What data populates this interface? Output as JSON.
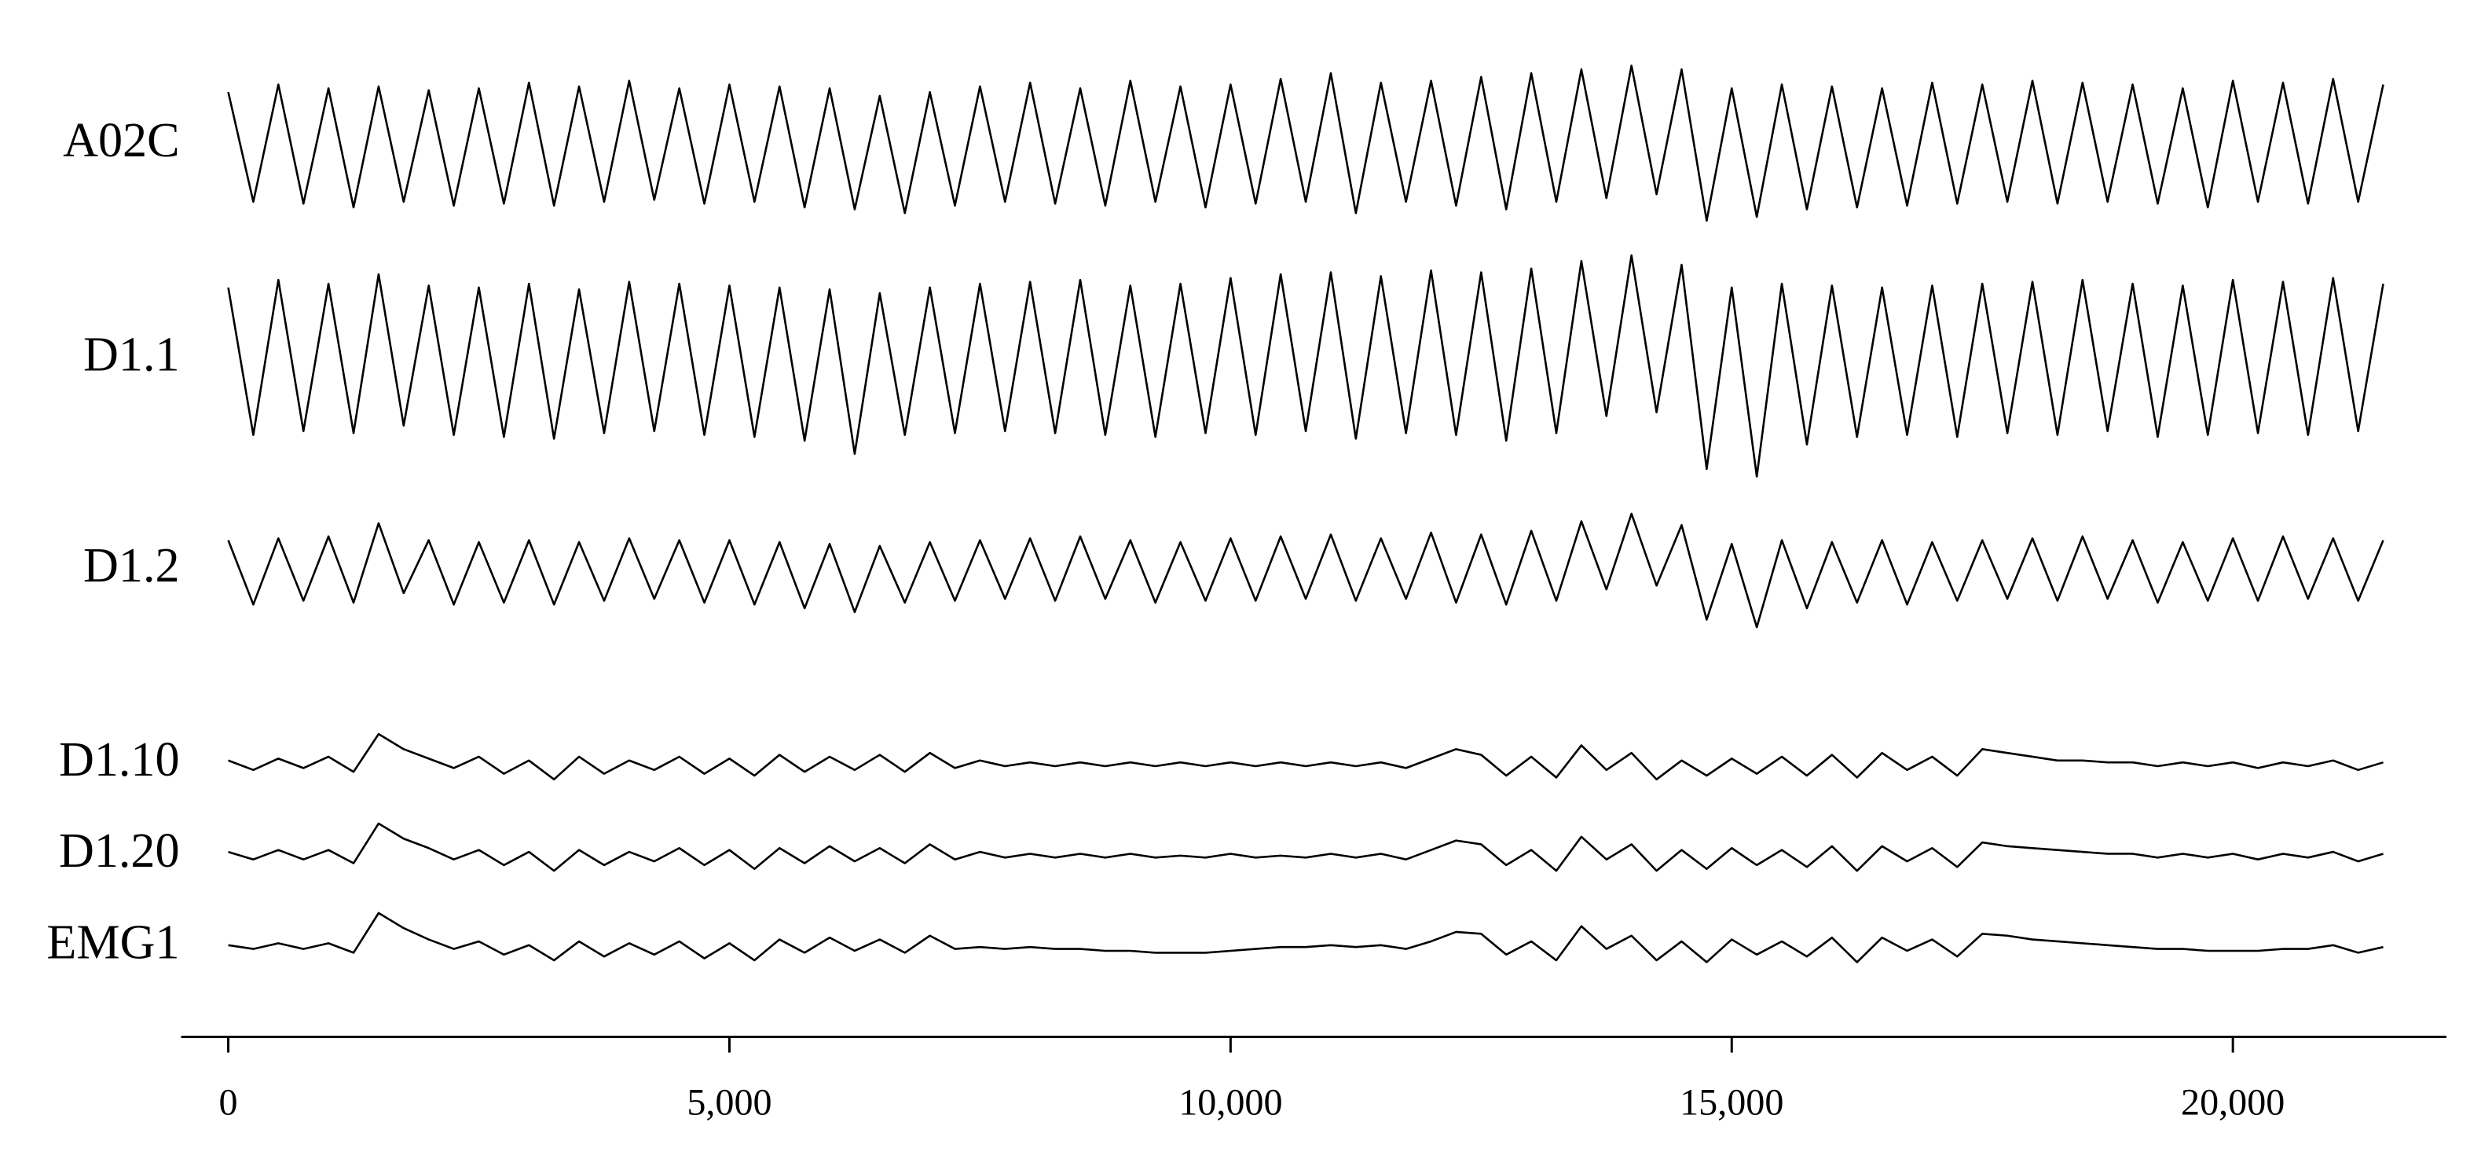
{
  "chart_data": {
    "type": "line",
    "x": [
      0,
      250,
      500,
      750,
      1000,
      1250,
      1500,
      1750,
      2000,
      2250,
      2500,
      2750,
      3000,
      3250,
      3500,
      3750,
      4000,
      4250,
      4500,
      4750,
      5000,
      5250,
      5500,
      5750,
      6000,
      6250,
      6500,
      6750,
      7000,
      7250,
      7500,
      7750,
      8000,
      8250,
      8500,
      8750,
      9000,
      9250,
      9500,
      9750,
      10000,
      10250,
      10500,
      10750,
      11000,
      11250,
      11500,
      11750,
      12000,
      12250,
      12500,
      12750,
      13000,
      13250,
      13500,
      13750,
      14000,
      14250,
      14500,
      14750,
      15000,
      15250,
      15500,
      15750,
      16000,
      16250,
      16500,
      16750,
      17000,
      17250,
      17500,
      17750,
      18000,
      18250,
      18500,
      18750,
      19000,
      19250,
      19500,
      19750,
      20000,
      20250,
      20500,
      20750,
      21000,
      21250,
      21500
    ],
    "xlim": [
      -470,
      22130
    ],
    "xticks": [
      0,
      {
        "value": 5000,
        "label": "5,000"
      },
      {
        "value": 10000,
        "label": "10,000"
      },
      {
        "value": 15000,
        "label": "15,000"
      },
      {
        "value": 20000,
        "label": "20,000"
      }
    ],
    "series": [
      {
        "name": "A02C",
        "color": "#000000",
        "values": [
          28,
          -30,
          32,
          -31,
          30,
          -33,
          31,
          -30,
          29,
          -32,
          30,
          -31,
          33,
          -32,
          31,
          -30,
          34,
          -29,
          30,
          -31,
          32,
          -30,
          31,
          -33,
          30,
          -34,
          26,
          -36,
          28,
          -32,
          31,
          -30,
          33,
          -31,
          30,
          -32,
          34,
          -30,
          31,
          -33,
          32,
          -31,
          35,
          -30,
          38,
          -36,
          33,
          -30,
          34,
          -32,
          36,
          -34,
          38,
          -30,
          40,
          -28,
          42,
          -26,
          40,
          -40,
          30,
          -38,
          32,
          -34,
          31,
          -33,
          30,
          -32,
          33,
          -31,
          32,
          -30,
          34,
          -31,
          33,
          -30,
          32,
          -31,
          30,
          -33,
          34,
          -30,
          33,
          -31,
          35,
          -30,
          32
        ]
      },
      {
        "name": "D1.1",
        "color": "#000000",
        "values": [
          38,
          -40,
          42,
          -38,
          40,
          -39,
          45,
          -35,
          39,
          -40,
          38,
          -41,
          40,
          -42,
          37,
          -39,
          41,
          -38,
          40,
          -40,
          39,
          -41,
          38,
          -43,
          37,
          -50,
          35,
          -40,
          38,
          -39,
          40,
          -38,
          41,
          -39,
          42,
          -40,
          39,
          -41,
          40,
          -39,
          43,
          -40,
          45,
          -38,
          46,
          -42,
          44,
          -39,
          47,
          -40,
          46,
          -43,
          48,
          -39,
          52,
          -30,
          55,
          -28,
          50,
          -58,
          38,
          -62,
          40,
          -45,
          39,
          -41,
          38,
          -40,
          39,
          -41,
          40,
          -39,
          41,
          -40,
          42,
          -38,
          40,
          -41,
          39,
          -40,
          42,
          -39,
          41,
          -40,
          43,
          -38,
          40
        ]
      },
      {
        "name": "D1.2",
        "color": "#000000",
        "values": [
          16,
          -18,
          17,
          -16,
          18,
          -17,
          25,
          -12,
          16,
          -18,
          15,
          -17,
          16,
          -18,
          15,
          -16,
          17,
          -15,
          16,
          -17,
          16,
          -18,
          15,
          -20,
          14,
          -22,
          13,
          -17,
          15,
          -16,
          16,
          -15,
          17,
          -16,
          18,
          -15,
          16,
          -17,
          15,
          -16,
          17,
          -16,
          18,
          -15,
          19,
          -16,
          17,
          -15,
          20,
          -17,
          19,
          -18,
          21,
          -16,
          26,
          -10,
          30,
          -8,
          24,
          -26,
          14,
          -30,
          16,
          -20,
          15,
          -17,
          16,
          -18,
          15,
          -16,
          16,
          -15,
          17,
          -16,
          18,
          -15,
          16,
          -17,
          15,
          -16,
          17,
          -16,
          18,
          -15,
          17,
          -16,
          16
        ]
      },
      {
        "name": "D1.10",
        "color": "#000000",
        "values": [
          2,
          -3,
          3,
          -2,
          4,
          -4,
          16,
          8,
          3,
          -2,
          4,
          -5,
          2,
          -8,
          4,
          -5,
          2,
          -3,
          4,
          -5,
          3,
          -6,
          5,
          -4,
          4,
          -3,
          5,
          -4,
          6,
          -2,
          2,
          -1,
          1,
          -1,
          1,
          -1,
          1,
          -1,
          1,
          -1,
          1,
          -1,
          1,
          -1,
          1,
          -1,
          1,
          -2,
          3,
          8,
          5,
          -6,
          4,
          -7,
          10,
          -3,
          6,
          -8,
          2,
          -6,
          3,
          -5,
          4,
          -6,
          5,
          -7,
          6,
          -3,
          4,
          -6,
          8,
          6,
          4,
          2,
          2,
          1,
          1,
          -1,
          1,
          -1,
          1,
          -2,
          1,
          -1,
          2,
          -3,
          1
        ]
      },
      {
        "name": "D1.20",
        "color": "#000000",
        "values": [
          2,
          -2,
          3,
          -2,
          3,
          -4,
          17,
          9,
          4,
          -2,
          3,
          -5,
          2,
          -8,
          3,
          -5,
          2,
          -3,
          4,
          -5,
          3,
          -7,
          4,
          -4,
          5,
          -3,
          4,
          -4,
          6,
          -2,
          2,
          -1,
          1,
          -1,
          1,
          -1,
          1,
          -1,
          0,
          -1,
          1,
          -1,
          0,
          -1,
          1,
          -1,
          1,
          -2,
          3,
          8,
          6,
          -5,
          3,
          -8,
          10,
          -2,
          6,
          -8,
          3,
          -7,
          4,
          -5,
          3,
          -6,
          5,
          -8,
          5,
          -3,
          4,
          -6,
          7,
          5,
          4,
          3,
          2,
          1,
          1,
          -1,
          1,
          -1,
          1,
          -2,
          1,
          -1,
          2,
          -3,
          1
        ]
      },
      {
        "name": "EMG1",
        "color": "#000000",
        "values": [
          1,
          -1,
          2,
          -1,
          2,
          -3,
          18,
          10,
          4,
          -1,
          3,
          -4,
          1,
          -7,
          3,
          -5,
          2,
          -4,
          3,
          -6,
          2,
          -7,
          4,
          -3,
          5,
          -2,
          4,
          -3,
          6,
          -1,
          0,
          -1,
          0,
          -1,
          -1,
          -2,
          -2,
          -3,
          -3,
          -3,
          -2,
          -1,
          0,
          0,
          1,
          0,
          1,
          -1,
          3,
          8,
          7,
          -4,
          3,
          -7,
          11,
          -1,
          6,
          -7,
          3,
          -8,
          4,
          -4,
          3,
          -5,
          5,
          -8,
          5,
          -2,
          4,
          -5,
          7,
          6,
          4,
          3,
          2,
          1,
          0,
          -1,
          -1,
          -2,
          -2,
          -2,
          -1,
          -1,
          1,
          -3,
          0
        ]
      }
    ]
  }
}
